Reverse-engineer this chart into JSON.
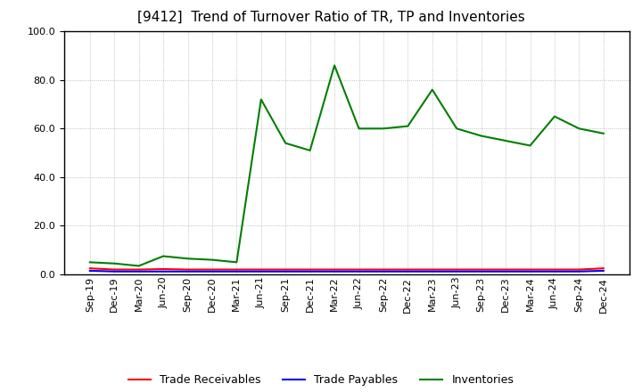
{
  "title": "[9412]  Trend of Turnover Ratio of TR, TP and Inventories",
  "xlabels": [
    "Sep-19",
    "Dec-19",
    "Mar-20",
    "Jun-20",
    "Sep-20",
    "Dec-20",
    "Mar-21",
    "Jun-21",
    "Sep-21",
    "Dec-21",
    "Mar-22",
    "Jun-22",
    "Sep-22",
    "Dec-22",
    "Mar-23",
    "Jun-23",
    "Sep-23",
    "Dec-23",
    "Mar-24",
    "Jun-24",
    "Sep-24",
    "Dec-24"
  ],
  "trade_receivables": [
    2.5,
    2.0,
    2.0,
    2.2,
    2.0,
    2.0,
    2.0,
    2.0,
    2.0,
    2.0,
    2.0,
    2.0,
    2.0,
    2.0,
    2.0,
    2.0,
    2.0,
    2.0,
    2.0,
    2.0,
    2.0,
    2.5
  ],
  "trade_payables": [
    1.5,
    1.2,
    1.2,
    1.2,
    1.2,
    1.2,
    1.2,
    1.2,
    1.2,
    1.2,
    1.2,
    1.2,
    1.2,
    1.2,
    1.2,
    1.2,
    1.2,
    1.2,
    1.2,
    1.2,
    1.2,
    1.5
  ],
  "inventories": [
    5.0,
    4.5,
    3.5,
    7.5,
    6.5,
    6.0,
    5.0,
    72.0,
    54.0,
    51.0,
    86.0,
    60.0,
    60.0,
    61.0,
    76.0,
    60.0,
    57.0,
    55.0,
    53.0,
    65.0,
    60.0,
    58.0
  ],
  "ylim": [
    0.0,
    100.0
  ],
  "yticks": [
    0.0,
    20.0,
    40.0,
    60.0,
    80.0,
    100.0
  ],
  "tr_color": "#ff0000",
  "tp_color": "#0000ff",
  "inv_color": "#008000",
  "bg_color": "#ffffff",
  "grid_color": "#999999",
  "title_fontsize": 11,
  "tick_fontsize": 8,
  "legend_fontsize": 9
}
